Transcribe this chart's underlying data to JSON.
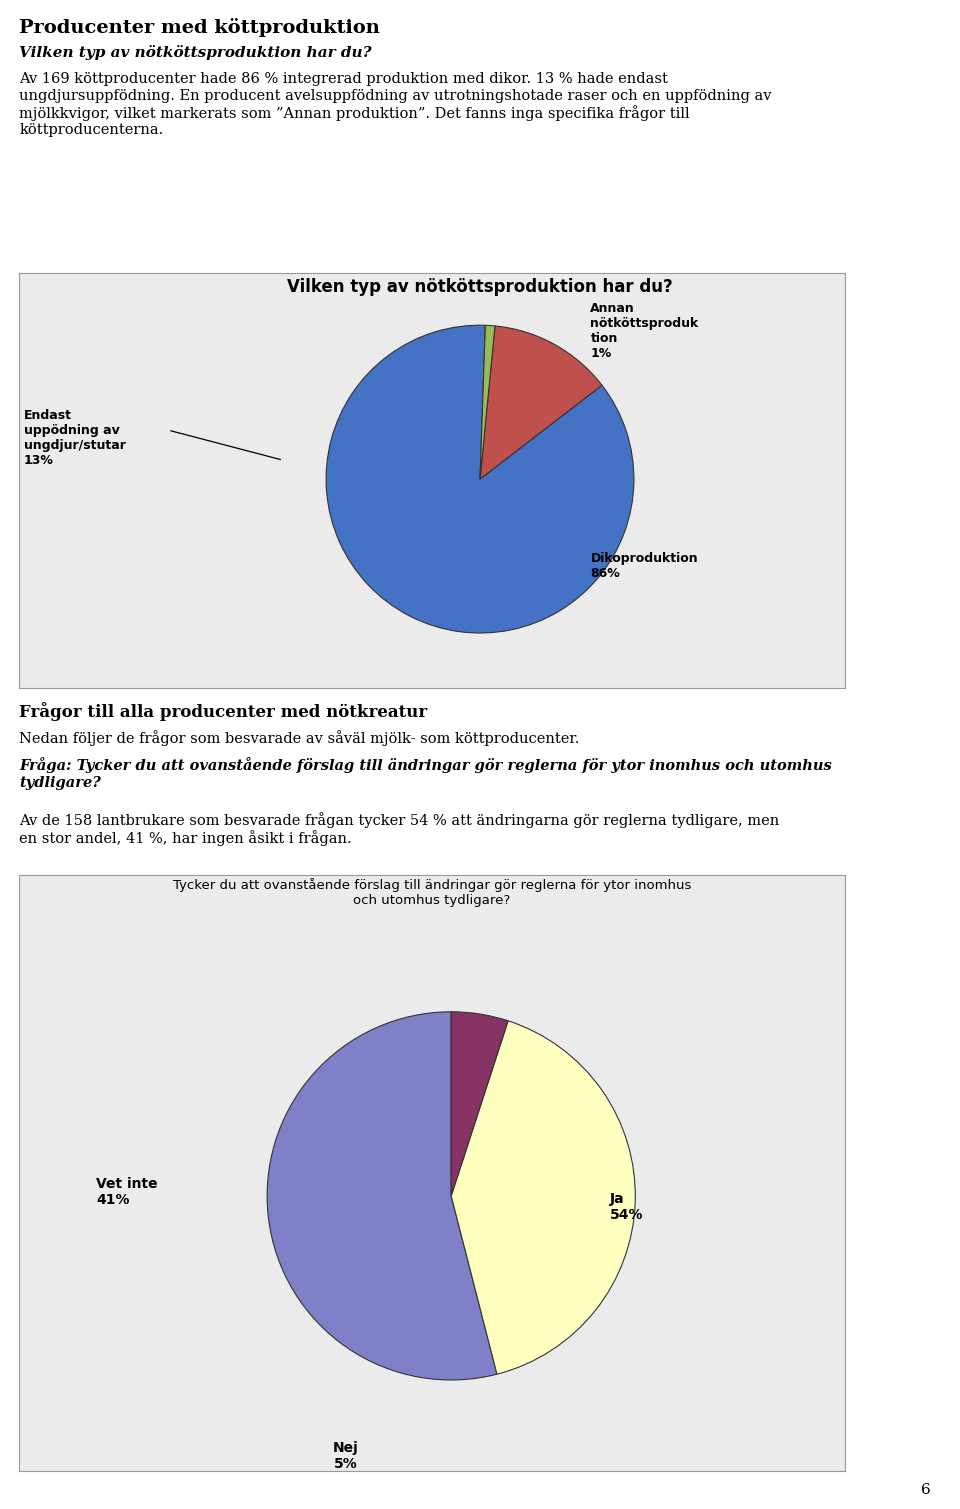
{
  "page_title": "Producenter med köttproduktion",
  "page_subtitle": "Vilken typ av nötköttsproduktion har du?",
  "page_text1": "Av 169 köttproducenter hade 86 % integrerad produktion med dikor. 13 % hade endast\nungdjursuppfödning. En producent avelsuppfödning av utrotningshotade raser och en uppfödning av\nmjölkkvigor, vilket markerats som ”Annan produktion”. Det fanns inga specifika frågor till\nköttproducenterna.",
  "chart1_title": "Vilken typ av nötköttsproduktion har du?",
  "chart1_slices": [
    86,
    13,
    1
  ],
  "chart1_colors": [
    "#4472C4",
    "#C0504D",
    "#9BBB59"
  ],
  "chart1_startangle": 88,
  "label1_diko": "Dikoproduktion\n86%",
  "label1_endast": "Endast\nuppödning av\nungdjur/stutar\n13%",
  "label1_annan": "Annan\nnötköttsproduk\ntion\n1%",
  "section_title": "Frågor till alla producenter med nötkreatur",
  "section_text1": "Nedan följer de frågor som besvarade av såväl mjölk- som köttproducenter.",
  "section_question": "Fråga: Tycker du att ovanstående förslag till ändringar gör reglerna för ytor inomhus och utomhus\ntydligare?",
  "section_text2": "Av de 158 lantbrukare som besvarade frågan tycker 54 % att ändringarna gör reglerna tydligare, men\nen stor andel, 41 %, har ingen åsikt i frågan.",
  "chart2_title": "Tycker du att ovanstående förslag till ändringar gör reglerna för ytor inomhus\noch utomhus tydligare?",
  "chart2_slices": [
    54,
    41,
    5
  ],
  "chart2_colors": [
    "#8080C8",
    "#FFFFC0",
    "#883366"
  ],
  "chart2_startangle": 90,
  "label2_ja": "Ja\n54%",
  "label2_vetinte": "Vet inte\n41%",
  "label2_nej": "Nej\n5%",
  "page_number": "6",
  "bg_color": "#FFFFFF",
  "chart_bg": "#EBEBEB"
}
